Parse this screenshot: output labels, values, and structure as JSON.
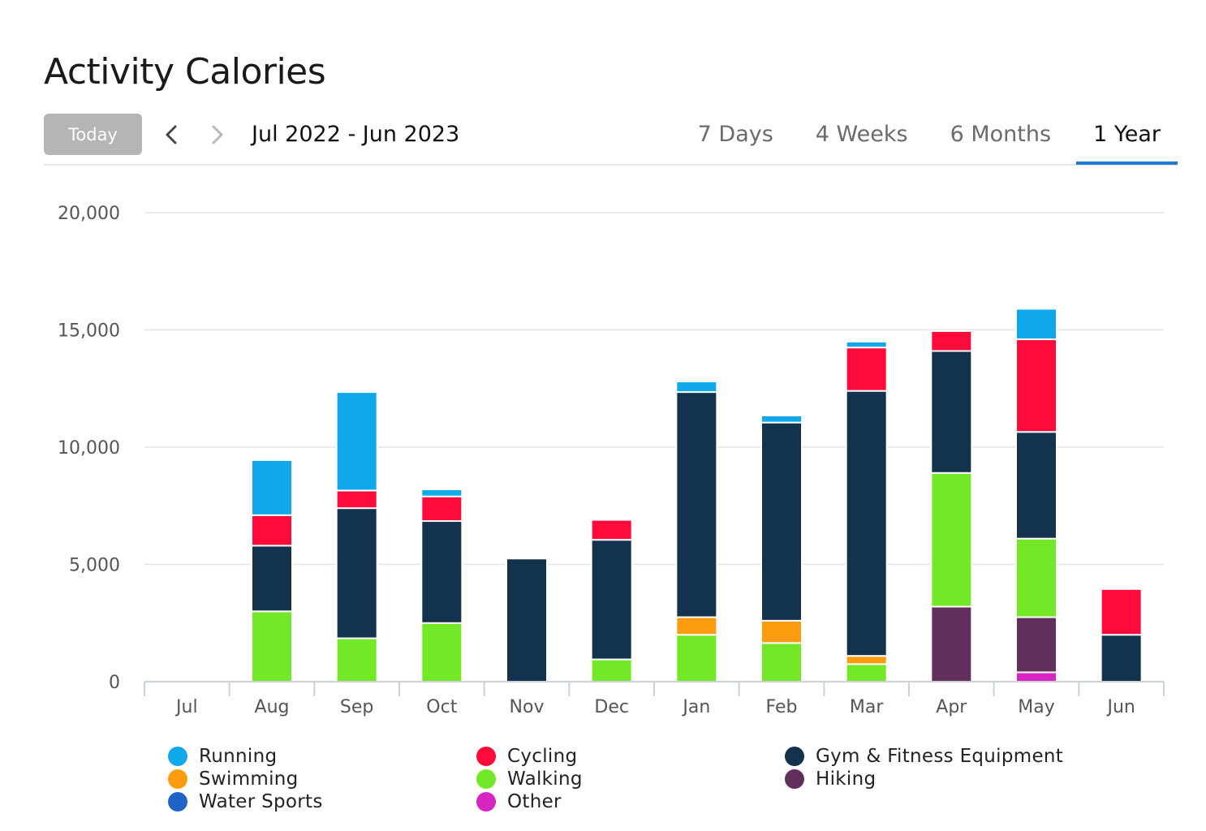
{
  "header": {
    "title": "Activity Calories"
  },
  "toolbar": {
    "today_label": "Today",
    "range_label": "Jul 2022 - Jun 2023",
    "tabs": [
      {
        "label": "7 Days",
        "active": false
      },
      {
        "label": "4 Weeks",
        "active": false
      },
      {
        "label": "6 Months",
        "active": false
      },
      {
        "label": "1 Year",
        "active": true
      }
    ]
  },
  "colors": {
    "running": "#10a8ea",
    "cycling": "#fe0a3b",
    "gym": "#12324d",
    "swimming": "#fd9c0f",
    "walking": "#72e826",
    "hiking": "#622e5c",
    "water_sports": "#1f63c7",
    "other": "#d625c0",
    "grid": "#e1e4e8",
    "axis_text": "#555555"
  },
  "chart_data": {
    "type": "bar",
    "stacked": true,
    "title": "Activity Calories",
    "xlabel": "",
    "ylabel": "",
    "ylim": [
      0,
      20000
    ],
    "yticks": [
      0,
      5000,
      10000,
      15000,
      20000
    ],
    "ytick_labels": [
      "0",
      "5,000",
      "10,000",
      "15,000",
      "20,000"
    ],
    "categories": [
      "Jul",
      "Aug",
      "Sep",
      "Oct",
      "Nov",
      "Dec",
      "Jan",
      "Feb",
      "Mar",
      "Apr",
      "May",
      "Jun"
    ],
    "series": [
      {
        "name": "Other",
        "key": "other",
        "values": [
          0,
          0,
          0,
          0,
          0,
          0,
          0,
          0,
          0,
          0,
          400,
          0
        ]
      },
      {
        "name": "Hiking",
        "key": "hiking",
        "values": [
          0,
          0,
          0,
          0,
          0,
          0,
          0,
          0,
          0,
          3200,
          2350,
          0
        ]
      },
      {
        "name": "Walking",
        "key": "walking",
        "values": [
          0,
          3000,
          1850,
          2500,
          0,
          950,
          2000,
          1650,
          750,
          5700,
          3350,
          0
        ]
      },
      {
        "name": "Swimming",
        "key": "swimming",
        "values": [
          0,
          0,
          0,
          0,
          0,
          0,
          750,
          950,
          350,
          0,
          0,
          0
        ]
      },
      {
        "name": "Water Sports",
        "key": "water_sports",
        "values": [
          0,
          0,
          0,
          0,
          0,
          0,
          0,
          0,
          0,
          0,
          0,
          0
        ]
      },
      {
        "name": "Gym & Fitness Equipment",
        "key": "gym",
        "values": [
          0,
          2800,
          5550,
          4350,
          5250,
          5100,
          9600,
          8450,
          11300,
          5200,
          4550,
          2000
        ]
      },
      {
        "name": "Cycling",
        "key": "cycling",
        "values": [
          0,
          1300,
          750,
          1050,
          0,
          850,
          0,
          0,
          1850,
          850,
          3950,
          1950
        ]
      },
      {
        "name": "Running",
        "key": "running",
        "values": [
          0,
          2350,
          4200,
          300,
          0,
          0,
          450,
          300,
          250,
          0,
          1300,
          0
        ]
      }
    ]
  },
  "legend": {
    "items": [
      {
        "label": "Running",
        "key": "running"
      },
      {
        "label": "Swimming",
        "key": "swimming"
      },
      {
        "label": "Water Sports",
        "key": "water_sports"
      },
      {
        "label": "Cycling",
        "key": "cycling"
      },
      {
        "label": "Walking",
        "key": "walking"
      },
      {
        "label": "Other",
        "key": "other"
      },
      {
        "label": "Gym & Fitness Equipment",
        "key": "gym"
      },
      {
        "label": "Hiking",
        "key": "hiking"
      }
    ]
  }
}
